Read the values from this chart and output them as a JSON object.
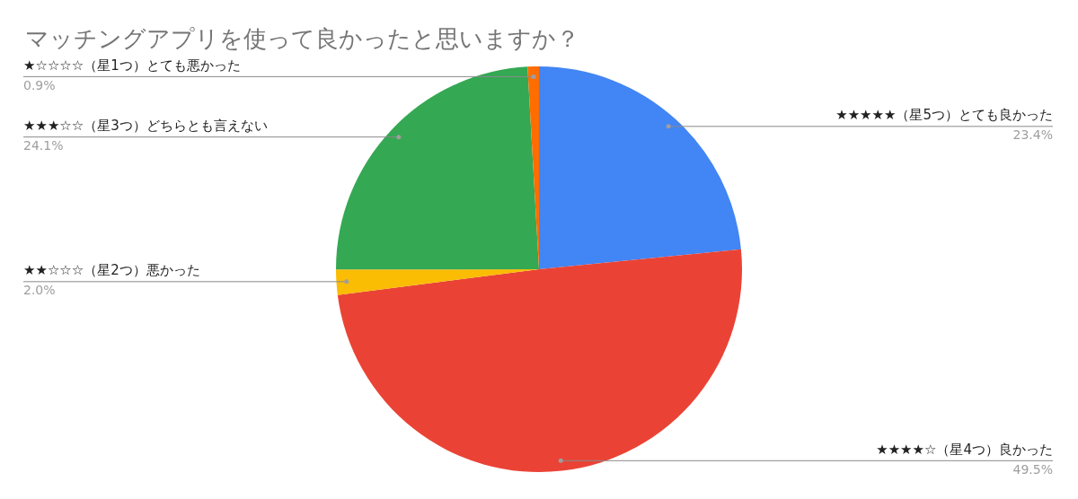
{
  "chart_data": {
    "type": "pie",
    "title": "マッチングアプリを使って良かったと思いますか？",
    "categories": [
      "★★★★★（星5つ）とても良かった",
      "★★★★☆（星4つ）良かった",
      "★★☆☆☆（星2つ）悪かった",
      "★★★☆☆（星3つ）どちらとも言えない",
      "★☆☆☆☆（星1つ）とても悪かった"
    ],
    "values": [
      23.4,
      49.5,
      2.0,
      24.1,
      0.9
    ],
    "value_labels": [
      "23.4%",
      "49.5%",
      "2.0%",
      "24.1%",
      "0.9%"
    ],
    "colors": [
      "#4285f4",
      "#ea4335",
      "#fbbc04",
      "#34a853",
      "#ff6d01"
    ],
    "legend": false
  }
}
